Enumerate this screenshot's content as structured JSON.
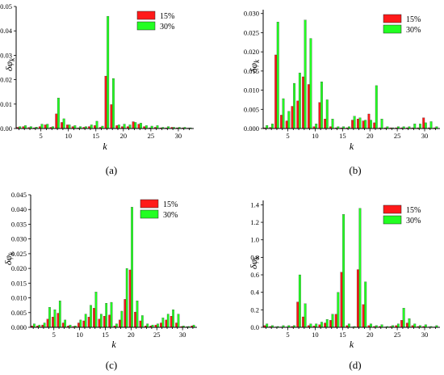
{
  "colors": {
    "series_15": "#ff1a1a",
    "series_30": "#22ff22",
    "axis": "#000000"
  },
  "chart_data": [
    {
      "type": "bar",
      "caption": "(a)",
      "xlabel": "k",
      "ylabel_main": "δφ",
      "ylabel_sub": "k",
      "xlim": [
        0.5,
        32.8
      ],
      "ylim": [
        0,
        0.05
      ],
      "xticks": [
        5,
        10,
        15,
        20,
        25,
        30
      ],
      "yticks": [
        "0.00",
        "0.01",
        "0.02",
        "0.03",
        "0.04",
        "0.05"
      ],
      "ytick_values": [
        0,
        0.01,
        0.02,
        0.03,
        0.04,
        0.05
      ],
      "legend_position": "top-right",
      "x": [
        1,
        2,
        3,
        4,
        5,
        6,
        7,
        8,
        9,
        10,
        11,
        12,
        13,
        14,
        15,
        16,
        17,
        18,
        19,
        20,
        21,
        22,
        23,
        24,
        25,
        26,
        27,
        28,
        29,
        30,
        31,
        32
      ],
      "series": [
        {
          "name": "15%",
          "color_key": "series_15",
          "values": [
            0.0005,
            0.0008,
            0.0004,
            0.0003,
            0.0008,
            0.0015,
            0.0005,
            0.006,
            0.0025,
            0.0015,
            0.0008,
            0.0003,
            0.0005,
            0.0008,
            0.0012,
            0.0005,
            0.0215,
            0.0098,
            0.0012,
            0.0008,
            0.0008,
            0.0028,
            0.0018,
            0.0008,
            0.0003,
            0.0005,
            0.0003,
            0.0003,
            0.0005,
            0.0003,
            0.0003,
            0.0002
          ]
        },
        {
          "name": "30%",
          "color_key": "series_30",
          "values": [
            0.0008,
            0.0012,
            0.0008,
            0.0006,
            0.0018,
            0.0018,
            0.0008,
            0.0125,
            0.004,
            0.0015,
            0.0012,
            0.0008,
            0.0008,
            0.0015,
            0.003,
            0.001,
            0.046,
            0.0205,
            0.0015,
            0.0018,
            0.0015,
            0.0025,
            0.0022,
            0.0012,
            0.001,
            0.0012,
            0.0005,
            0.0008,
            0.0005,
            0.0005,
            0.0005,
            0.0003
          ]
        }
      ]
    },
    {
      "type": "bar",
      "caption": "(b)",
      "xlabel": "k",
      "ylabel_main": "δφ",
      "ylabel_sub": "k",
      "xlim": [
        0.5,
        32.8
      ],
      "ylim": [
        0,
        0.031
      ],
      "xticks": [
        5,
        10,
        15,
        20,
        25,
        30
      ],
      "yticks": [
        "0.000",
        "0.005",
        "0.010",
        "0.015",
        "0.020",
        "0.025",
        "0.030"
      ],
      "ytick_values": [
        0,
        0.005,
        0.01,
        0.015,
        0.02,
        0.025,
        0.03
      ],
      "legend_position": "top-right",
      "x": [
        1,
        2,
        3,
        4,
        5,
        6,
        7,
        8,
        9,
        10,
        11,
        12,
        13,
        14,
        15,
        16,
        17,
        18,
        19,
        20,
        21,
        22,
        23,
        24,
        25,
        26,
        27,
        28,
        29,
        30,
        31,
        32
      ],
      "series": [
        {
          "name": "15%",
          "color_key": "series_15",
          "values": [
            0.0002,
            0.0003,
            0.0192,
            0.0035,
            0.002,
            0.0058,
            0.0072,
            0.0135,
            0.0115,
            0.0005,
            0.0068,
            0.0025,
            0.0005,
            0.0002,
            0.0002,
            0.0002,
            0.0022,
            0.0025,
            0.002,
            0.0038,
            0.0015,
            0.0002,
            0.0002,
            0.0002,
            0.0002,
            0.0002,
            0.0002,
            0.0002,
            0.0002,
            0.0028,
            0.0002,
            0.0002
          ]
        },
        {
          "name": "30%",
          "color_key": "series_30",
          "values": [
            0.0008,
            0.0012,
            0.0278,
            0.0078,
            0.0045,
            0.0118,
            0.0145,
            0.0283,
            0.0235,
            0.0012,
            0.0122,
            0.0075,
            0.0025,
            0.0005,
            0.0005,
            0.0005,
            0.0032,
            0.0028,
            0.0022,
            0.0022,
            0.0112,
            0.0025,
            0.0005,
            0.0002,
            0.0005,
            0.0005,
            0.0005,
            0.0012,
            0.0012,
            0.0015,
            0.0018,
            0.0005
          ]
        }
      ]
    },
    {
      "type": "bar",
      "caption": "(c)",
      "xlabel": "k",
      "ylabel_main": "δφ",
      "ylabel_sub": "k",
      "xlim": [
        0.5,
        32.8
      ],
      "ylim": [
        0,
        0.045
      ],
      "xticks": [
        5,
        10,
        15,
        20,
        25,
        30
      ],
      "yticks": [
        "0.000",
        "0.005",
        "0.010",
        "0.015",
        "0.020",
        "0.025",
        "0.030",
        "0.035",
        "0.040",
        "0.045"
      ],
      "ytick_values": [
        0,
        0.005,
        0.01,
        0.015,
        0.02,
        0.025,
        0.03,
        0.035,
        0.04,
        0.045
      ],
      "legend_position": "top-right",
      "x": [
        1,
        2,
        3,
        4,
        5,
        6,
        7,
        8,
        9,
        10,
        11,
        12,
        13,
        14,
        15,
        16,
        17,
        18,
        19,
        20,
        21,
        22,
        23,
        24,
        25,
        26,
        27,
        28,
        29,
        30,
        31,
        32
      ],
      "series": [
        {
          "name": "15%",
          "color_key": "series_15",
          "values": [
            0.0005,
            0.0005,
            0.0008,
            0.0028,
            0.0035,
            0.0048,
            0.0015,
            0.0005,
            0.0003,
            0.0015,
            0.0022,
            0.0035,
            0.0065,
            0.0028,
            0.0038,
            0.0042,
            0.0005,
            0.0025,
            0.0095,
            0.0195,
            0.0052,
            0.0022,
            0.0005,
            0.0005,
            0.0008,
            0.0015,
            0.0025,
            0.0038,
            0.0015,
            0.0003,
            0.0002,
            0.0005
          ]
        },
        {
          "name": "30%",
          "color_key": "series_30",
          "values": [
            0.0012,
            0.0008,
            0.0015,
            0.0068,
            0.006,
            0.009,
            0.0025,
            0.0008,
            0.0005,
            0.0025,
            0.0045,
            0.0075,
            0.012,
            0.0045,
            0.0082,
            0.0085,
            0.0012,
            0.0055,
            0.02,
            0.0408,
            0.009,
            0.004,
            0.0012,
            0.0008,
            0.0012,
            0.0032,
            0.0045,
            0.006,
            0.0045,
            0.0005,
            0.0003,
            0.0008
          ]
        }
      ]
    },
    {
      "type": "bar",
      "caption": "(d)",
      "xlabel": "k",
      "ylabel_main": "δφ",
      "ylabel_sub": "k",
      "xlim": [
        0.5,
        32.8
      ],
      "ylim": [
        0,
        1.45
      ],
      "xticks": [
        5,
        10,
        15,
        20,
        25,
        30
      ],
      "yticks": [
        "0.0",
        "0.2",
        "0.4",
        "0.6",
        "0.8",
        "1.0",
        "1.2",
        "1.4"
      ],
      "ytick_values": [
        0,
        0.2,
        0.4,
        0.6,
        0.8,
        1.0,
        1.2,
        1.4
      ],
      "legend_position": "top-right",
      "x": [
        1,
        2,
        3,
        4,
        5,
        6,
        7,
        8,
        9,
        10,
        11,
        12,
        13,
        14,
        15,
        16,
        17,
        18,
        19,
        20,
        21,
        22,
        23,
        24,
        25,
        26,
        27,
        28,
        29,
        30,
        31,
        32
      ],
      "series": [
        {
          "name": "15%",
          "color_key": "series_15",
          "values": [
            0.02,
            0.01,
            0.005,
            0.005,
            0.005,
            0.01,
            0.29,
            0.12,
            0.02,
            0.015,
            0.03,
            0.05,
            0.08,
            0.15,
            0.63,
            0.02,
            0.005,
            0.66,
            0.26,
            0.02,
            0.01,
            0.01,
            0.005,
            0.01,
            0.02,
            0.08,
            0.05,
            0.02,
            0.01,
            0.01,
            0.005,
            0.005
          ]
        },
        {
          "name": "30%",
          "color_key": "series_30",
          "values": [
            0.04,
            0.02,
            0.01,
            0.02,
            0.02,
            0.02,
            0.6,
            0.27,
            0.04,
            0.04,
            0.06,
            0.09,
            0.15,
            0.4,
            1.29,
            0.04,
            0.01,
            1.36,
            0.52,
            0.04,
            0.02,
            0.03,
            0.01,
            0.02,
            0.04,
            0.22,
            0.1,
            0.04,
            0.02,
            0.03,
            0.01,
            0.02
          ]
        }
      ]
    }
  ]
}
